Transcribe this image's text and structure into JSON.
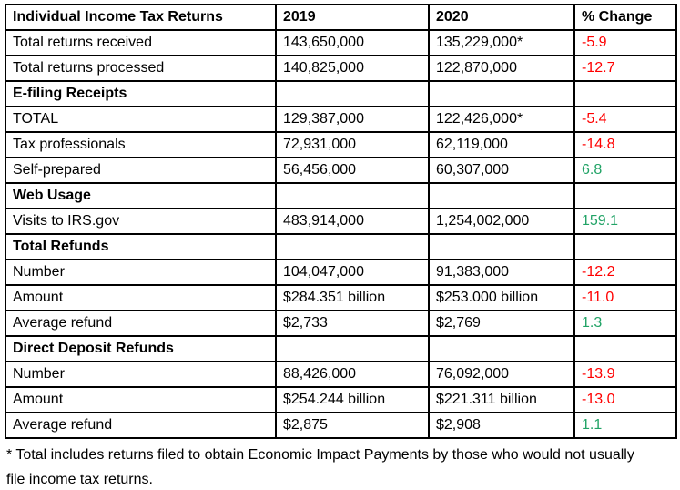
{
  "chart_data": {
    "type": "table",
    "title": "Individual Income Tax Returns",
    "columns": [
      "Individual Income Tax Returns",
      "2019",
      "2020",
      "% Change"
    ],
    "rows": [
      {
        "type": "data",
        "label": "Total returns received",
        "y2019": "143,650,000",
        "y2020": "135,229,000*",
        "change": "-5.9"
      },
      {
        "type": "data",
        "label": "Total returns processed",
        "y2019": "140,825,000",
        "y2020": "122,870,000",
        "change": "-12.7"
      },
      {
        "type": "section",
        "label": "E-filing Receipts"
      },
      {
        "type": "data",
        "label": "TOTAL",
        "y2019": "129,387,000",
        "y2020": "122,426,000*",
        "change": "-5.4"
      },
      {
        "type": "data",
        "label": "Tax professionals",
        "y2019": "72,931,000",
        "y2020": "62,119,000",
        "change": "-14.8"
      },
      {
        "type": "data",
        "label": "Self-prepared",
        "y2019": "56,456,000",
        "y2020": "60,307,000",
        "change": "6.8"
      },
      {
        "type": "section",
        "label": "Web Usage"
      },
      {
        "type": "data",
        "label": "Visits to IRS.gov",
        "y2019": "483,914,000",
        "y2020": "1,254,002,000",
        "change": "159.1"
      },
      {
        "type": "section",
        "label": "Total Refunds"
      },
      {
        "type": "data",
        "label": "Number",
        "y2019": "104,047,000",
        "y2020": "91,383,000",
        "change": "-12.2"
      },
      {
        "type": "data",
        "label": "Amount",
        "y2019": "$284.351 billion",
        "y2020": "$253.000 billion",
        "change": "-11.0"
      },
      {
        "type": "data",
        "label": "Average refund",
        "y2019": "$2,733",
        "y2020": "$2,769",
        "change": "1.3"
      },
      {
        "type": "section",
        "label": "Direct Deposit Refunds"
      },
      {
        "type": "data",
        "label": "Number",
        "y2019": "88,426,000",
        "y2020": "76,092,000",
        "change": "-13.9"
      },
      {
        "type": "data",
        "label": "Amount",
        "y2019": "$254.244 billion",
        "y2020": "$221.311 billion",
        "change": "-13.0"
      },
      {
        "type": "data",
        "label": "Average refund",
        "y2019": "$2,875",
        "y2020": "$2,908",
        "change": "1.1"
      }
    ],
    "footnote": "* Total includes returns filed to obtain Economic Impact Payments by those who would not usually file income tax returns.",
    "colors": {
      "negative": "#FF0000",
      "positive": "#21A366",
      "border": "#000000",
      "text": "#000000"
    }
  }
}
